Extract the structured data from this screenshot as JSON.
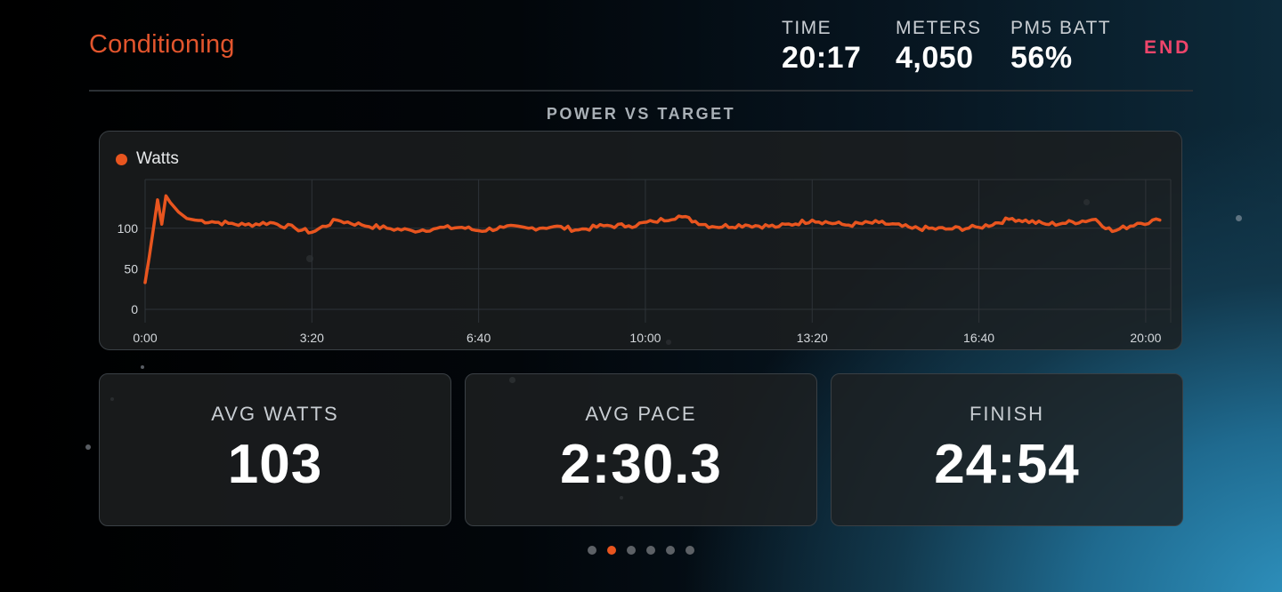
{
  "workout": {
    "title": "Conditioning"
  },
  "stats": [
    {
      "label": "TIME",
      "value": "20:17"
    },
    {
      "label": "METERS",
      "value": "4,050"
    },
    {
      "label": "PM5 BATT",
      "value": "56%"
    }
  ],
  "end_label": "END",
  "chart_heading": "POWER VS TARGET",
  "chart_data": {
    "type": "line",
    "title": "POWER VS TARGET",
    "series": [
      {
        "name": "Watts",
        "color": "#e8551f",
        "x_seconds": [
          0,
          5,
          10,
          15,
          20,
          25,
          30,
          40,
          50,
          60,
          80,
          100,
          120,
          150,
          180,
          200,
          230,
          260,
          290,
          320,
          350,
          380,
          400,
          430,
          460,
          490,
          520,
          550,
          580,
          610,
          640,
          680,
          720,
          760,
          800,
          840,
          880,
          920,
          960,
          1000,
          1040,
          1080,
          1100,
          1140,
          1160,
          1190,
          1217
        ],
        "values": [
          33,
          65,
          100,
          135,
          105,
          140,
          132,
          120,
          112,
          110,
          108,
          106,
          104,
          107,
          100,
          95,
          110,
          104,
          100,
          97,
          100,
          101,
          97,
          101,
          100,
          102,
          98,
          103,
          103,
          108,
          115,
          102,
          104,
          102,
          110,
          104,
          107,
          100,
          99,
          101,
          112,
          105,
          106,
          111,
          96,
          106,
          110
        ]
      }
    ],
    "x_ticks": [
      "0:00",
      "3:20",
      "6:40",
      "10:00",
      "13:20",
      "16:40",
      "20:00"
    ],
    "y_ticks": [
      "0",
      "50",
      "100"
    ],
    "xlim_seconds": [
      0,
      1230
    ],
    "ylim": [
      0,
      160
    ],
    "grid": true,
    "legend": "top-left"
  },
  "metrics": [
    {
      "label": "AVG WATTS",
      "value": "103"
    },
    {
      "label": "AVG PACE",
      "value": "2:30.3"
    },
    {
      "label": "FINISH",
      "value": "24:54"
    }
  ],
  "pager": {
    "count": 6,
    "active": 1
  }
}
